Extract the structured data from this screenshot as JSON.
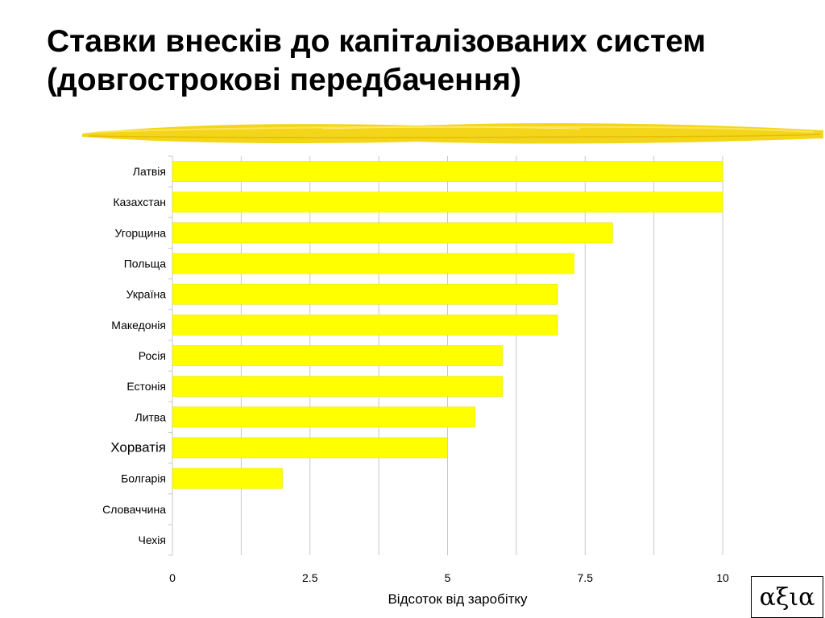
{
  "slide": {
    "title": "Ставки внесків до капіталізованих систем (довгострокові передбачення)",
    "logo_text": "αξια"
  },
  "colors": {
    "bar": "#ffff00",
    "bar_stroke": "#e0e000",
    "brush": "#f2d000",
    "grid": "#c8c8c8"
  },
  "chart_data": {
    "type": "bar",
    "orientation": "horizontal",
    "categories": [
      "Латвія",
      "Казахстан",
      "Угорщина",
      "Польща",
      "Україна",
      "Македонія",
      "Росія",
      "Естонія",
      "Литва",
      "Хорватія",
      "Болгарія",
      "Словаччина",
      "Чехія"
    ],
    "values": [
      10,
      10,
      8,
      7.3,
      7,
      7,
      6,
      6,
      5.5,
      5,
      2,
      0,
      0
    ],
    "xlabel": "Відсоток від заробітку",
    "ylabel": "",
    "xlim": [
      0,
      10
    ],
    "xticks": [
      0,
      2.5,
      5,
      7.5,
      10
    ],
    "xtick_labels": [
      "0",
      "2.5",
      "5",
      "7.5",
      "10"
    ],
    "grid": true,
    "legend": "none"
  }
}
